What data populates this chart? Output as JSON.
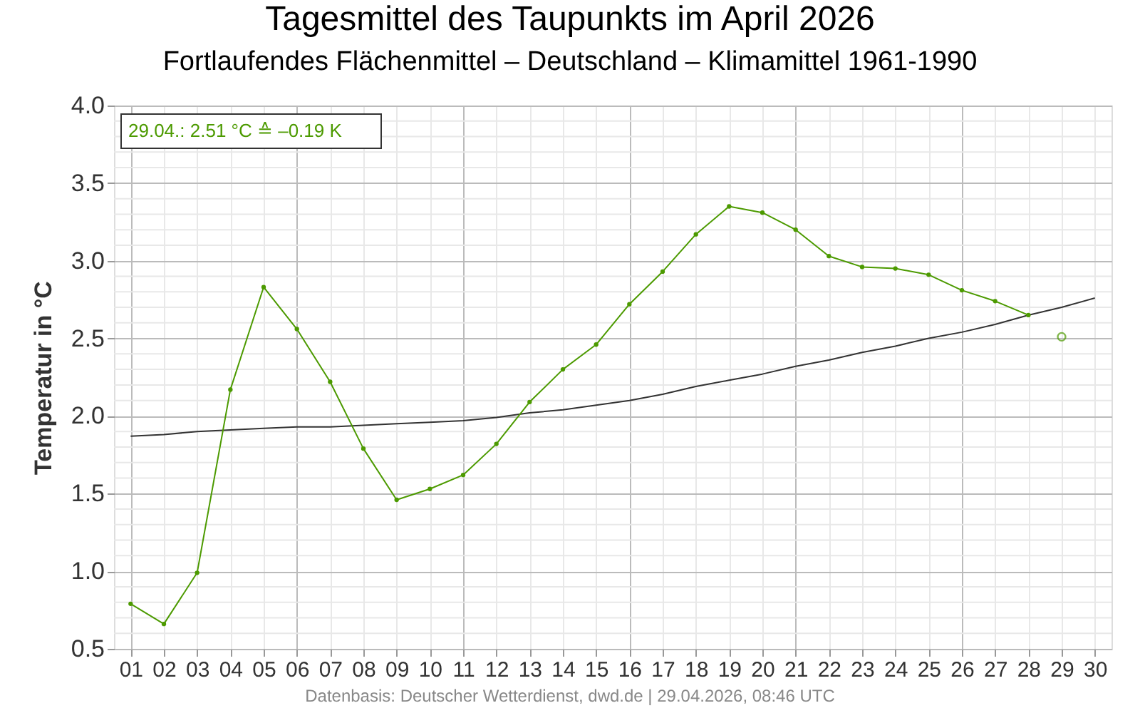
{
  "chart_data": {
    "type": "line",
    "title": "Tagesmittel des Taupunkts im April 2026",
    "subtitle": "Fortlaufendes Flächenmittel – Deutschland – Klimamittel 1961-1990",
    "ylabel": "Temperatur in °C",
    "categories": [
      "01",
      "02",
      "03",
      "04",
      "05",
      "06",
      "07",
      "08",
      "09",
      "10",
      "11",
      "12",
      "13",
      "14",
      "15",
      "16",
      "17",
      "18",
      "19",
      "20",
      "21",
      "22",
      "23",
      "24",
      "25",
      "26",
      "27",
      "28",
      "29",
      "30"
    ],
    "series": [
      {
        "type": "line",
        "color": "#333333",
        "marker": "none",
        "values": [
          1.87,
          1.88,
          1.9,
          1.91,
          1.92,
          1.93,
          1.93,
          1.94,
          1.95,
          1.96,
          1.97,
          1.99,
          2.02,
          2.04,
          2.07,
          2.1,
          2.14,
          2.19,
          2.23,
          2.27,
          2.32,
          2.36,
          2.41,
          2.45,
          2.5,
          2.54,
          2.59,
          2.65,
          2.7,
          2.76
        ]
      },
      {
        "type": "line",
        "color": "#4c9a00",
        "marker": "circle",
        "values": [
          0.79,
          0.66,
          0.99,
          2.17,
          2.83,
          2.56,
          2.22,
          1.79,
          1.46,
          1.53,
          1.62,
          1.82,
          2.09,
          2.3,
          2.46,
          2.72,
          2.93,
          3.17,
          3.35,
          3.31,
          3.2,
          3.03,
          2.96,
          2.95,
          2.91,
          2.81,
          2.74,
          2.65,
          null,
          null
        ]
      },
      {
        "type": "scatter",
        "color": "#4c9a00",
        "marker": "circle",
        "x": [
          "29"
        ],
        "values": [
          2.51
        ]
      }
    ],
    "ylim": [
      0.5,
      4.0
    ],
    "yticks": [
      {
        "value": 0.5,
        "label": "0.5"
      },
      {
        "value": 1,
        "label": "1.0"
      },
      {
        "value": 1.5,
        "label": "1.5"
      },
      {
        "value": 2,
        "label": "2.0"
      },
      {
        "value": 2.5,
        "label": "2.5"
      },
      {
        "value": 3,
        "label": "3.0"
      },
      {
        "value": 3.5,
        "label": "3.5"
      },
      {
        "value": 4,
        "label": "4.0"
      }
    ],
    "grid": true,
    "annotations": [
      "29.04.: 2.51 °C ≙ –0.19 K",
      "Datenbasis: Deutscher Wetterdienst, dwd.de | 29.04.2026, 08:46 UTC"
    ]
  }
}
